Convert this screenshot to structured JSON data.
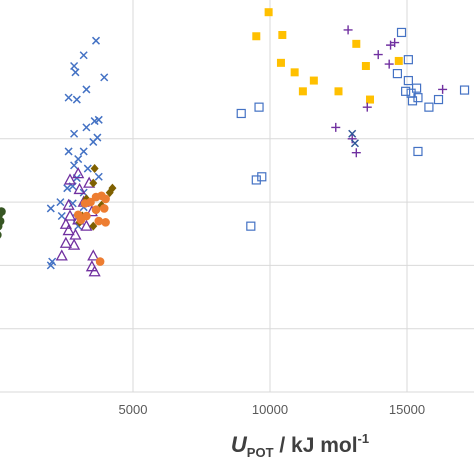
{
  "chart_data": {
    "type": "scatter",
    "title": "",
    "xlabel": {
      "main": "U",
      "sub": "POT",
      "unit": " / kJ mol",
      "sup": "-1"
    },
    "ylabel": "",
    "xlim": [
      -500,
      17000
    ],
    "x_ticks": [
      5000,
      10000,
      15000
    ],
    "x_tick_labels": [
      "5000",
      "10000",
      "15000"
    ],
    "y_gridlines": [
      1,
      2,
      3,
      4
    ],
    "grid": true,
    "legend": "none",
    "series": [
      {
        "marker": "filled-circle",
        "color": "#375623",
        "points": [
          [
            -100,
            3.0
          ],
          [
            -50,
            2.85
          ],
          [
            -120,
            2.75
          ],
          [
            -80,
            2.65
          ],
          [
            -150,
            2.6
          ],
          [
            -60,
            2.55
          ],
          [
            -100,
            2.5
          ],
          [
            -130,
            2.42
          ],
          [
            -90,
            2.35
          ],
          [
            -60,
            2.28
          ],
          [
            -110,
            2.22
          ],
          [
            -80,
            2.12
          ],
          [
            -20,
            2.05
          ],
          [
            100,
            2.8
          ],
          [
            150,
            2.7
          ],
          [
            80,
            2.62
          ],
          [
            200,
            2.85
          ],
          [
            50,
            2.48
          ]
        ]
      },
      {
        "marker": "x-cross",
        "color": "#4472C4",
        "points": [
          [
            3650,
            5.55
          ],
          [
            3200,
            5.32
          ],
          [
            2850,
            5.15
          ],
          [
            2900,
            5.05
          ],
          [
            3950,
            4.97
          ],
          [
            3300,
            4.78
          ],
          [
            2650,
            4.65
          ],
          [
            2950,
            4.62
          ],
          [
            3750,
            4.3
          ],
          [
            3600,
            4.28
          ],
          [
            3300,
            4.18
          ],
          [
            2850,
            4.08
          ],
          [
            3700,
            4.02
          ],
          [
            3550,
            3.95
          ],
          [
            2650,
            3.8
          ],
          [
            3200,
            3.8
          ],
          [
            3000,
            3.68
          ],
          [
            2850,
            3.58
          ],
          [
            3350,
            3.53
          ],
          [
            3750,
            3.4
          ],
          [
            2950,
            3.38
          ],
          [
            2800,
            3.25
          ],
          [
            2600,
            3.22
          ],
          [
            3200,
            3.15
          ],
          [
            2350,
            3.0
          ],
          [
            2800,
            2.98
          ],
          [
            3200,
            2.92
          ],
          [
            2950,
            2.75
          ],
          [
            2000,
            2.9
          ],
          [
            2400,
            2.78
          ],
          [
            3000,
            2.62
          ],
          [
            2050,
            2.06
          ],
          [
            2000,
            2.0
          ]
        ]
      },
      {
        "marker": "open-triangle",
        "color": "#7030A0",
        "points": [
          [
            3000,
            3.45
          ],
          [
            2700,
            3.35
          ],
          [
            3400,
            3.3
          ],
          [
            3050,
            3.2
          ],
          [
            3200,
            3.0
          ],
          [
            2650,
            2.95
          ],
          [
            3500,
            2.85
          ],
          [
            2700,
            2.78
          ],
          [
            3000,
            2.72
          ],
          [
            2550,
            2.65
          ],
          [
            3300,
            2.62
          ],
          [
            2650,
            2.55
          ],
          [
            2900,
            2.48
          ],
          [
            2550,
            2.35
          ],
          [
            2850,
            2.32
          ],
          [
            2400,
            2.15
          ],
          [
            3550,
            2.15
          ],
          [
            3500,
            1.98
          ],
          [
            3600,
            1.9
          ]
        ]
      },
      {
        "marker": "filled-diamond",
        "color": "#7F6000",
        "points": [
          [
            3600,
            3.53
          ],
          [
            3550,
            3.3
          ],
          [
            4250,
            3.22
          ],
          [
            4150,
            3.15
          ],
          [
            3300,
            3.05
          ],
          [
            3850,
            2.95
          ],
          [
            3550,
            2.62
          ],
          [
            3150,
            2.78
          ],
          [
            3050,
            2.68
          ]
        ]
      },
      {
        "marker": "filled-circle",
        "color": "#ED7D31",
        "points": [
          [
            3850,
            3.1
          ],
          [
            4000,
            3.05
          ],
          [
            3650,
            3.08
          ],
          [
            3250,
            2.98
          ],
          [
            3450,
            3.0
          ],
          [
            3650,
            2.88
          ],
          [
            3950,
            2.9
          ],
          [
            3300,
            2.78
          ],
          [
            3000,
            2.8
          ],
          [
            4000,
            2.68
          ],
          [
            3750,
            2.7
          ],
          [
            3100,
            2.72
          ],
          [
            3800,
            2.06
          ]
        ]
      },
      {
        "marker": "filled-square",
        "color": "#FFC000",
        "points": [
          [
            9950,
            6.0
          ],
          [
            9500,
            5.62
          ],
          [
            10450,
            5.64
          ],
          [
            10400,
            5.2
          ],
          [
            10900,
            5.05
          ],
          [
            11600,
            4.92
          ],
          [
            11200,
            4.75
          ],
          [
            12500,
            4.75
          ],
          [
            13150,
            5.5
          ],
          [
            13500,
            5.15
          ],
          [
            14700,
            5.23
          ],
          [
            13650,
            4.62
          ]
        ]
      },
      {
        "marker": "open-square",
        "color": "#4472C4",
        "points": [
          [
            14800,
            5.68
          ],
          [
            15050,
            5.25
          ],
          [
            14650,
            5.03
          ],
          [
            15050,
            4.92
          ],
          [
            15350,
            4.8
          ],
          [
            15150,
            4.72
          ],
          [
            15200,
            4.6
          ],
          [
            15400,
            4.65
          ],
          [
            14950,
            4.75
          ],
          [
            15800,
            4.5
          ],
          [
            16150,
            4.62
          ],
          [
            17100,
            4.77
          ],
          [
            8950,
            4.4
          ],
          [
            9600,
            4.5
          ],
          [
            15400,
            3.8
          ],
          [
            9700,
            3.4
          ],
          [
            9500,
            3.35
          ],
          [
            9300,
            2.62
          ]
        ]
      },
      {
        "marker": "plus",
        "color": "#7030A0",
        "points": [
          [
            12850,
            5.72
          ],
          [
            13950,
            5.33
          ],
          [
            14400,
            5.48
          ],
          [
            14550,
            5.52
          ],
          [
            14350,
            5.18
          ],
          [
            16300,
            4.78
          ],
          [
            13550,
            4.5
          ],
          [
            12400,
            4.18
          ],
          [
            13000,
            4.0
          ],
          [
            13150,
            3.78
          ]
        ]
      },
      {
        "marker": "x-cross",
        "color": "#2F5597",
        "points": [
          [
            13000,
            4.08
          ],
          [
            13100,
            3.93
          ]
        ]
      }
    ]
  }
}
